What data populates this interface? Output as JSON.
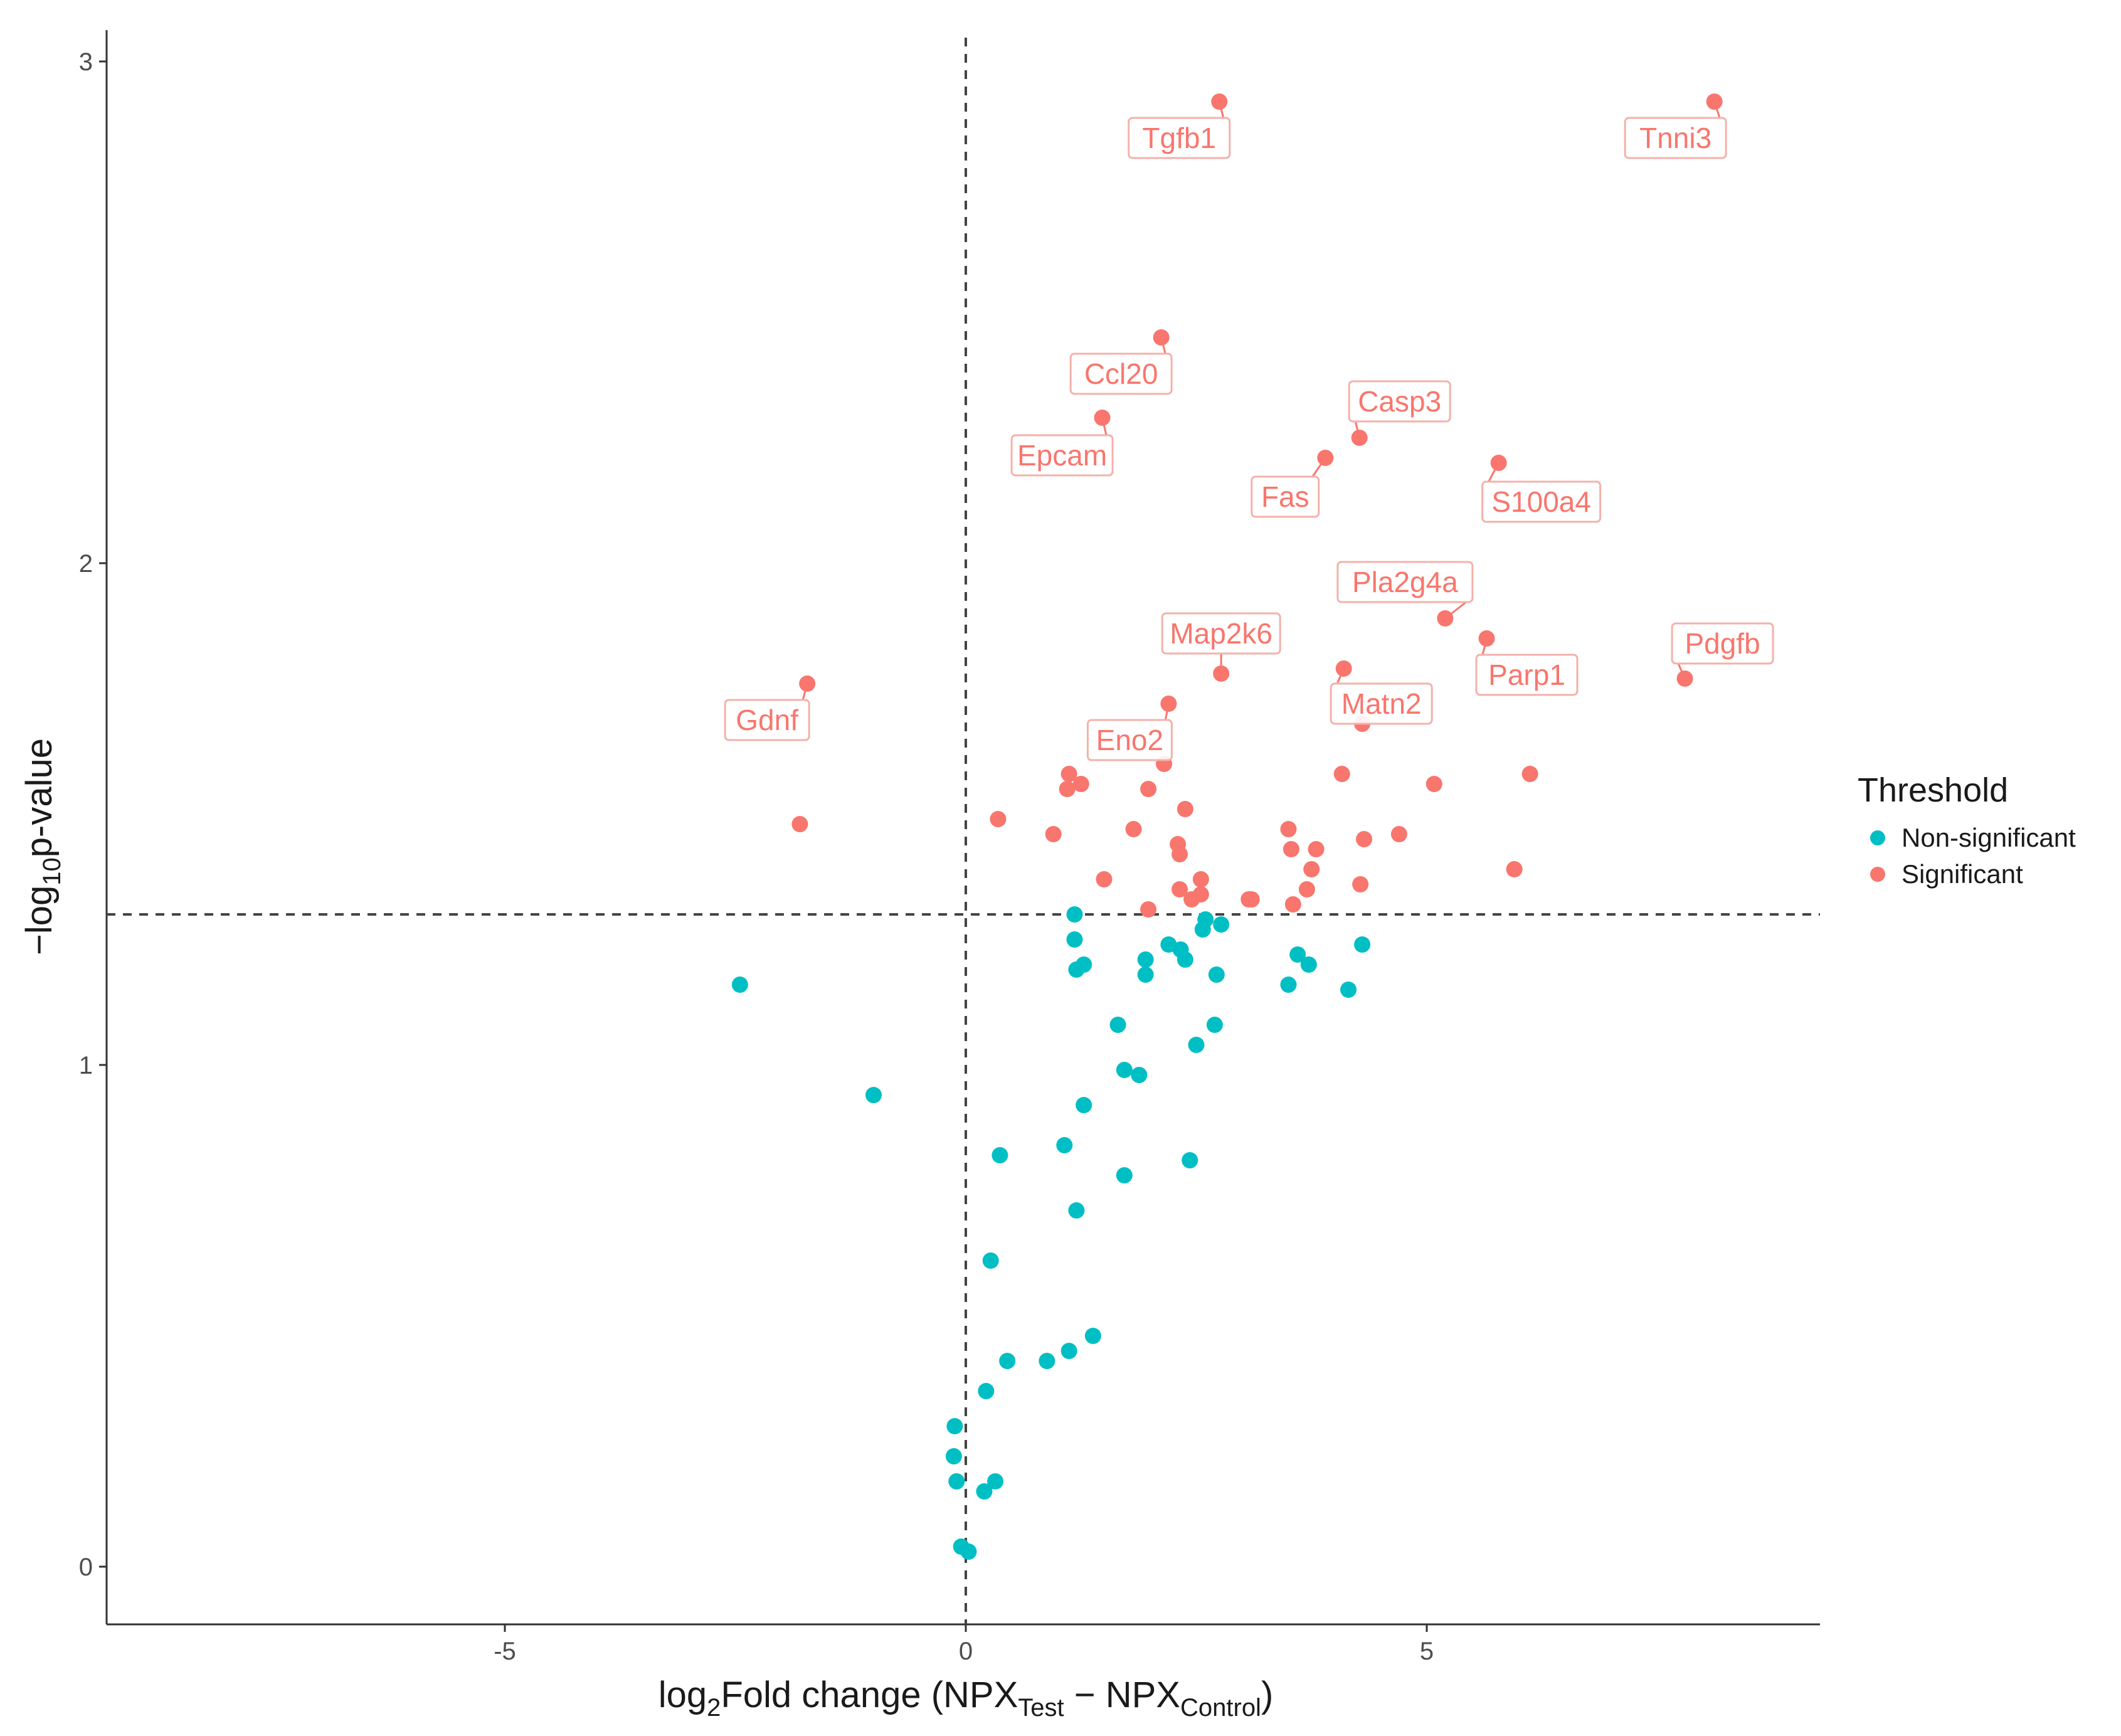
{
  "chart_data": {
    "type": "scatter",
    "subtype": "volcano",
    "xlabel": {
      "main": "log",
      "sub1": "2",
      "mid": "Fold change (NPX",
      "sub2": "Test",
      "dash": " − NPX",
      "sub3": "Control",
      "end": ")"
    },
    "ylabel": {
      "pre": "−log",
      "sub": "10",
      "post": "p-value"
    },
    "xlim": [
      -9.3,
      9.3
    ],
    "ylim": [
      -0.12,
      3.08
    ],
    "x_ticks": [
      -5,
      0,
      5
    ],
    "y_ticks": [
      0,
      1,
      2,
      3
    ],
    "x_tick_labels": [
      "-5",
      "0",
      "5"
    ],
    "y_tick_labels": [
      "0",
      "1",
      "2",
      "3"
    ],
    "threshold_lines": {
      "x": 0,
      "y": 1.3
    },
    "legend": {
      "title": "Threshold",
      "items": [
        {
          "label": "Non-significant",
          "color": "#00BFC4"
        },
        {
          "label": "Significant",
          "color": "#F8766D"
        }
      ]
    },
    "series": [
      {
        "name": "Non-significant",
        "color": "#00BFC4",
        "points": [
          [
            -2.45,
            1.16
          ],
          [
            -1.0,
            0.94
          ],
          [
            -0.12,
            0.28
          ],
          [
            -0.13,
            0.22
          ],
          [
            -0.1,
            0.17
          ],
          [
            -0.05,
            0.04
          ],
          [
            0.03,
            0.03
          ],
          [
            0.2,
            0.15
          ],
          [
            0.32,
            0.17
          ],
          [
            0.22,
            0.35
          ],
          [
            0.45,
            0.41
          ],
          [
            0.88,
            0.41
          ],
          [
            1.12,
            0.43
          ],
          [
            1.38,
            0.46
          ],
          [
            0.27,
            0.61
          ],
          [
            1.2,
            0.71
          ],
          [
            0.37,
            0.82
          ],
          [
            1.07,
            0.84
          ],
          [
            1.72,
            0.78
          ],
          [
            2.43,
            0.81
          ],
          [
            1.28,
            0.92
          ],
          [
            1.72,
            0.99
          ],
          [
            1.88,
            0.98
          ],
          [
            2.5,
            1.04
          ],
          [
            2.7,
            1.08
          ],
          [
            1.65,
            1.08
          ],
          [
            1.2,
            1.19
          ],
          [
            1.28,
            1.2
          ],
          [
            1.95,
            1.18
          ],
          [
            1.95,
            1.21
          ],
          [
            2.2,
            1.24
          ],
          [
            2.33,
            1.23
          ],
          [
            2.38,
            1.21
          ],
          [
            2.57,
            1.27
          ],
          [
            2.6,
            1.29
          ],
          [
            2.77,
            1.28
          ],
          [
            2.72,
            1.18
          ],
          [
            1.18,
            1.25
          ],
          [
            1.18,
            1.3
          ],
          [
            3.5,
            1.16
          ],
          [
            3.6,
            1.22
          ],
          [
            3.72,
            1.2
          ],
          [
            4.15,
            1.15
          ],
          [
            4.3,
            1.24
          ]
        ]
      },
      {
        "name": "Significant",
        "color": "#F8766D",
        "points": [
          [
            -1.8,
            1.48
          ],
          [
            -1.72,
            1.76
          ],
          [
            0.35,
            1.49
          ],
          [
            0.95,
            1.46
          ],
          [
            1.1,
            1.55
          ],
          [
            1.12,
            1.58
          ],
          [
            1.25,
            1.56
          ],
          [
            1.5,
            1.37
          ],
          [
            1.82,
            1.47
          ],
          [
            1.98,
            1.55
          ],
          [
            2.15,
            1.6
          ],
          [
            2.12,
            2.45
          ],
          [
            2.2,
            1.72
          ],
          [
            1.48,
            2.29
          ],
          [
            2.3,
            1.44
          ],
          [
            2.32,
            1.42
          ],
          [
            2.32,
            1.35
          ],
          [
            2.38,
            1.51
          ],
          [
            2.45,
            1.33
          ],
          [
            2.55,
            1.34
          ],
          [
            2.55,
            1.37
          ],
          [
            1.98,
            1.31
          ],
          [
            2.77,
            1.78
          ],
          [
            2.75,
            2.92
          ],
          [
            3.07,
            1.33
          ],
          [
            3.1,
            1.33
          ],
          [
            3.5,
            1.47
          ],
          [
            3.53,
            1.43
          ],
          [
            3.55,
            1.32
          ],
          [
            3.7,
            1.35
          ],
          [
            3.75,
            1.39
          ],
          [
            3.8,
            1.43
          ],
          [
            3.9,
            2.21
          ],
          [
            4.08,
            1.58
          ],
          [
            4.1,
            1.79
          ],
          [
            4.27,
            2.25
          ],
          [
            4.3,
            1.68
          ],
          [
            4.28,
            1.36
          ],
          [
            4.32,
            1.45
          ],
          [
            4.7,
            1.46
          ],
          [
            5.08,
            1.56
          ],
          [
            5.2,
            1.89
          ],
          [
            5.65,
            1.85
          ],
          [
            5.78,
            2.2
          ],
          [
            5.95,
            1.39
          ],
          [
            6.12,
            1.58
          ],
          [
            7.8,
            1.77
          ],
          [
            8.12,
            2.92
          ]
        ]
      }
    ],
    "annotations": [
      {
        "label": "Tgfb1",
        "x": 2.75,
        "y": 2.92
      },
      {
        "label": "Tnni3",
        "x": 8.12,
        "y": 2.92
      },
      {
        "label": "Ccl20",
        "x": 2.12,
        "y": 2.45
      },
      {
        "label": "Epcam",
        "x": 1.48,
        "y": 2.29
      },
      {
        "label": "Casp3",
        "x": 4.27,
        "y": 2.25
      },
      {
        "label": "Fas",
        "x": 3.9,
        "y": 2.21
      },
      {
        "label": "S100a4",
        "x": 5.78,
        "y": 2.2
      },
      {
        "label": "Pla2g4a",
        "x": 5.2,
        "y": 1.89
      },
      {
        "label": "Map2k6",
        "x": 2.77,
        "y": 1.78
      },
      {
        "label": "Parp1",
        "x": 5.65,
        "y": 1.85
      },
      {
        "label": "Pdgfb",
        "x": 7.8,
        "y": 1.77
      },
      {
        "label": "Matn2",
        "x": 4.1,
        "y": 1.79
      },
      {
        "label": "Gdnf",
        "x": -1.72,
        "y": 1.76
      },
      {
        "label": "Eno2",
        "x": 2.2,
        "y": 1.72
      }
    ]
  }
}
